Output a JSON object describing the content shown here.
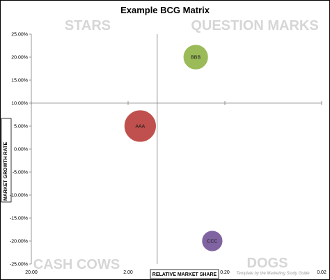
{
  "chart_data": {
    "type": "scatter",
    "subtype": "bubble",
    "title": "Example BCG Matrix",
    "xlabel": "RELATIVE MARKET SHARE",
    "ylabel": "MARKET GROWTH RATE",
    "x_scale": "log",
    "x_reversed": true,
    "xlim": [
      20.0,
      0.02
    ],
    "x_ticks": [
      "20.00",
      "2.00",
      "0.20",
      "0.02"
    ],
    "ylim": [
      -25,
      25
    ],
    "y_ticks": [
      "25.00%",
      "20.00%",
      "15.00%",
      "10.00%",
      "5.00%",
      "0.00%",
      "-5.00%",
      "-10.00%",
      "-15.00%",
      "-20.00%",
      "-25.00%"
    ],
    "quadrants": {
      "top_left": "STARS",
      "top_right": "QUESTION MARKS",
      "bottom_left": "CASH COWS",
      "bottom_right": "DOGS"
    },
    "crosshair": {
      "x": 1.0,
      "y": 10
    },
    "points": [
      {
        "label": "BBB",
        "x": 0.4,
        "y": 20,
        "color": "#9bbb59"
      },
      {
        "label": "AAA",
        "x": 1.5,
        "y": 5,
        "color": "#c0504d"
      },
      {
        "label": "CCC",
        "x": 0.27,
        "y": -20,
        "color": "#8064a2"
      }
    ],
    "grid": false,
    "legend": "none"
  },
  "footer": "Template by the Marketing Study Guide"
}
